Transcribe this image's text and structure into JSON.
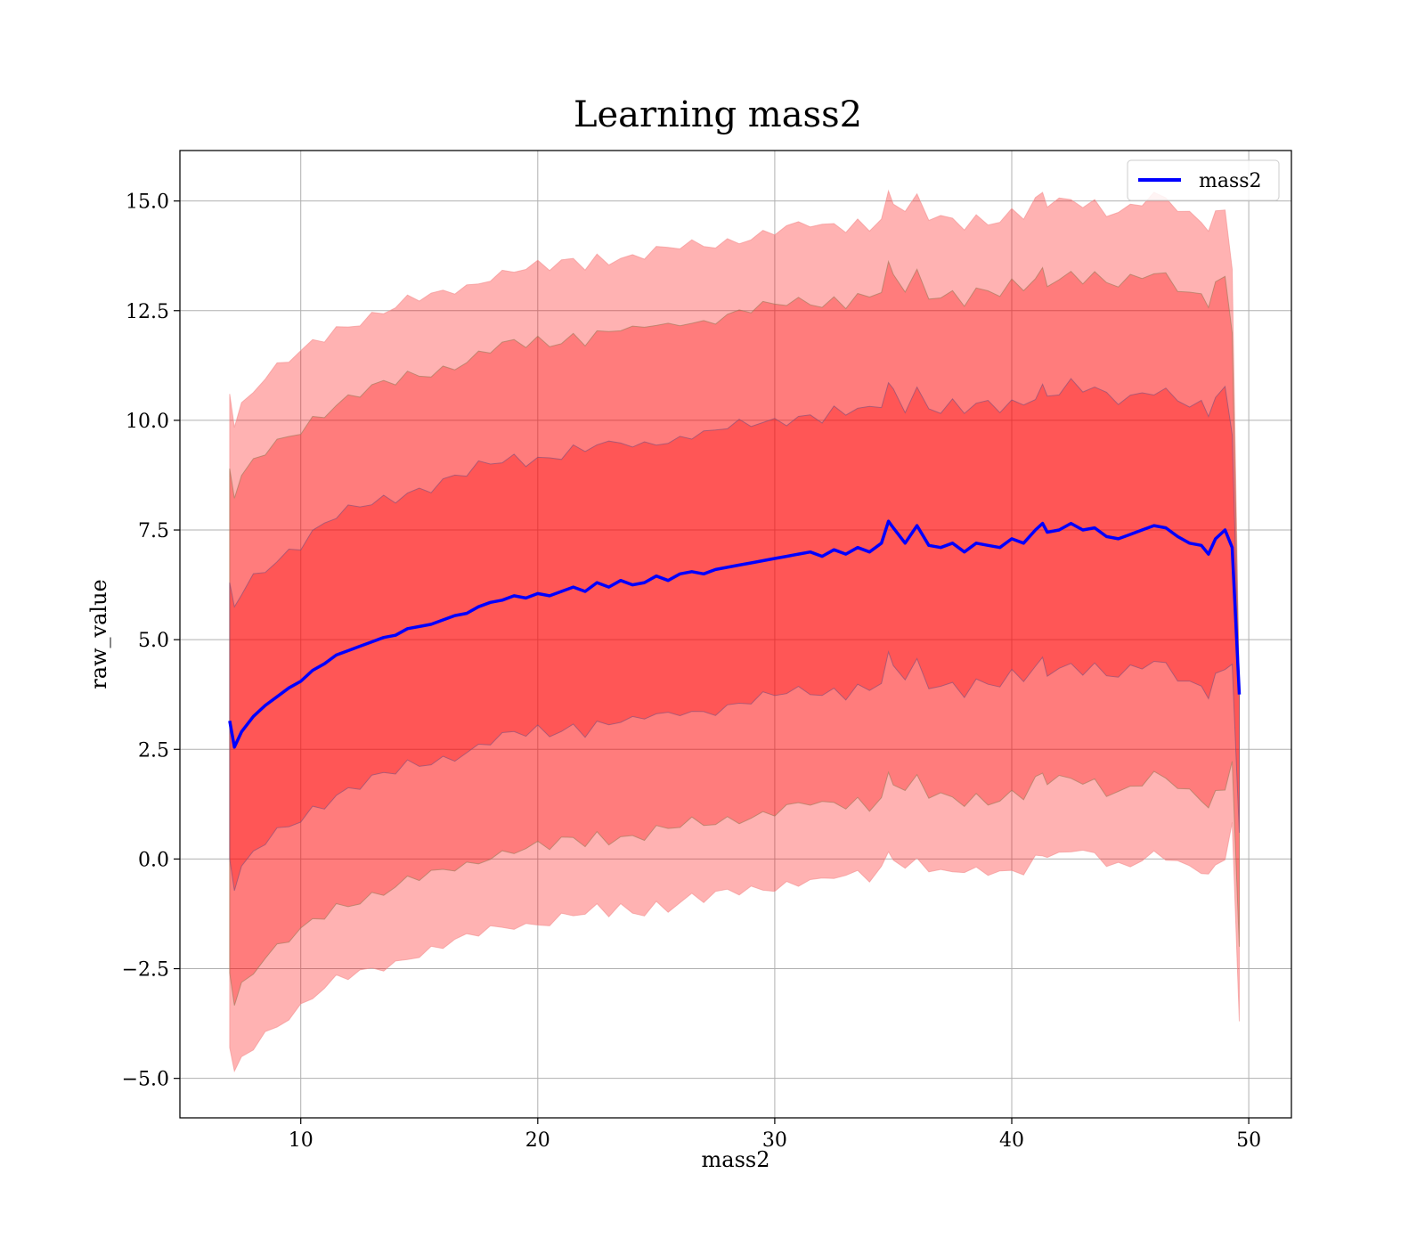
{
  "chart_data": {
    "type": "line",
    "title": "Learning mass2",
    "xlabel": "mass2",
    "ylabel": "raw_value",
    "xlim": [
      4.9,
      51.8
    ],
    "ylim": [
      -5.9,
      16.15
    ],
    "x_ticks": [
      10,
      20,
      30,
      40,
      50
    ],
    "y_ticks": [
      -5.0,
      -2.5,
      0.0,
      2.5,
      5.0,
      7.5,
      10.0,
      12.5,
      15.0
    ],
    "x_tick_labels": [
      "10",
      "20",
      "30",
      "40",
      "50"
    ],
    "y_tick_labels": [
      "−5.0",
      "−2.5",
      "0.0",
      "2.5",
      "5.0",
      "7.5",
      "10.0",
      "12.5",
      "15.0"
    ],
    "grid": true,
    "legend_position": "top-right",
    "colors": {
      "line": "#0000ff",
      "band": "#ff0000",
      "band_outer_edge": "#f28c8c",
      "band_mid_edge": "#9b7a58",
      "band_inner_edge": "#7b4f7b"
    },
    "series": [
      {
        "name": "mass2",
        "x": [
          7.0,
          7.2,
          7.5,
          8,
          8.5,
          9,
          9.5,
          10,
          10.5,
          11,
          11.5,
          12,
          12.5,
          13,
          13.5,
          14,
          14.5,
          15,
          15.5,
          16,
          16.5,
          17,
          17.5,
          18,
          18.5,
          19,
          19.5,
          20,
          20.5,
          21,
          21.5,
          22,
          22.5,
          23,
          23.5,
          24,
          24.5,
          25,
          25.5,
          26,
          26.5,
          27,
          27.5,
          28,
          28.5,
          29,
          29.5,
          30,
          30.5,
          31,
          31.5,
          32,
          32.5,
          33,
          33.5,
          34,
          34.5,
          34.8,
          35,
          35.5,
          36,
          36.5,
          37,
          37.5,
          38,
          38.5,
          39,
          39.5,
          40,
          40.5,
          41,
          41.3,
          41.5,
          42,
          42.5,
          43,
          43.5,
          44,
          44.5,
          45,
          45.5,
          46,
          46.5,
          47,
          47.5,
          48,
          48.3,
          48.6,
          49,
          49.3,
          49.6
        ],
        "values": [
          3.15,
          2.55,
          2.9,
          3.25,
          3.5,
          3.7,
          3.9,
          4.05,
          4.3,
          4.45,
          4.65,
          4.75,
          4.85,
          4.95,
          5.05,
          5.1,
          5.25,
          5.3,
          5.35,
          5.45,
          5.55,
          5.6,
          5.75,
          5.85,
          5.9,
          6.0,
          5.95,
          6.05,
          6.0,
          6.1,
          6.2,
          6.1,
          6.3,
          6.2,
          6.35,
          6.25,
          6.3,
          6.45,
          6.35,
          6.5,
          6.55,
          6.5,
          6.6,
          6.65,
          6.7,
          6.75,
          6.8,
          6.85,
          6.9,
          6.95,
          7.0,
          6.9,
          7.05,
          6.95,
          7.1,
          7.0,
          7.2,
          7.7,
          7.55,
          7.2,
          7.6,
          7.15,
          7.1,
          7.2,
          7.0,
          7.2,
          7.15,
          7.1,
          7.3,
          7.2,
          7.5,
          7.65,
          7.45,
          7.5,
          7.65,
          7.5,
          7.55,
          7.35,
          7.3,
          7.4,
          7.5,
          7.6,
          7.55,
          7.35,
          7.2,
          7.15,
          6.95,
          7.3,
          7.5,
          7.1,
          3.75
        ],
        "line_width": 3.5
      }
    ],
    "bands": [
      {
        "level": 1,
        "lower_offset": -3.15,
        "upper_offset": 3.15,
        "opacity": 0.3
      },
      {
        "level": 2,
        "lower_offset": -5.75,
        "upper_offset": 5.75,
        "opacity": 0.3
      },
      {
        "level": 3,
        "lower_offset": -7.45,
        "upper_offset": 7.45,
        "opacity": 0.3
      }
    ]
  }
}
